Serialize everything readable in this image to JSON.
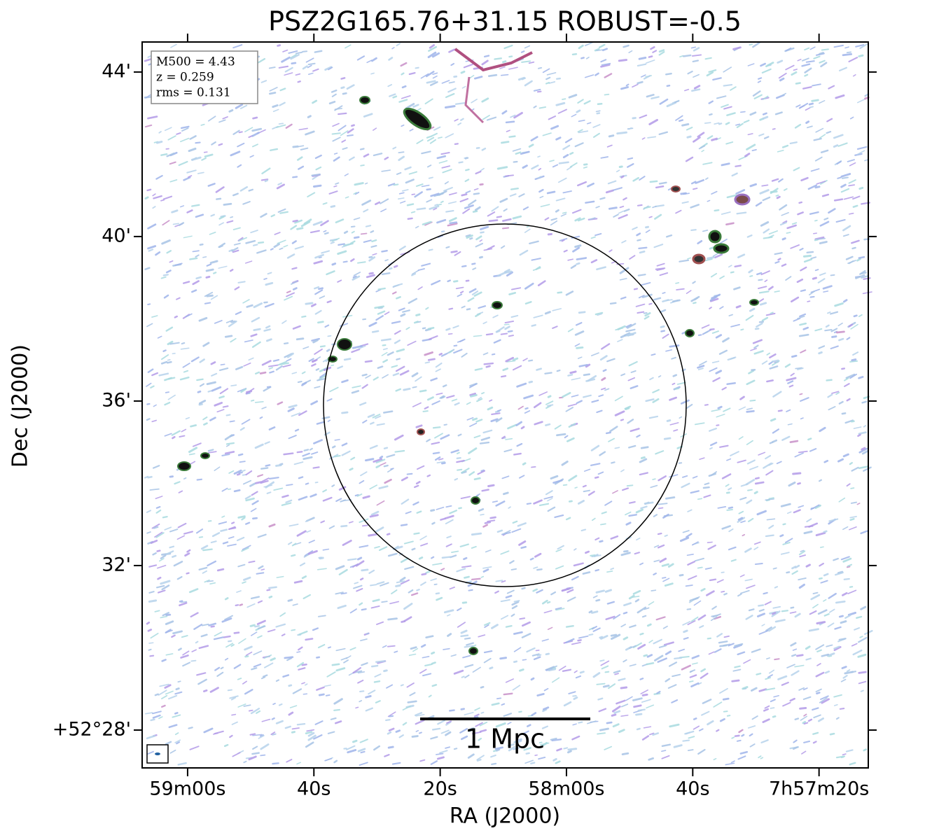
{
  "chart_data": {
    "type": "image",
    "title": "PSZ2G165.76+31.15 ROBUST=-0.5",
    "x_label": "RA (J2000)",
    "y_label": "Dec (J2000)",
    "xlim": [
      127.2,
      12.2
    ],
    "xticks": [
      {
        "value": 120,
        "label": "59m00s"
      },
      {
        "value": 100,
        "label": "40s"
      },
      {
        "value": 80,
        "label": "20s"
      },
      {
        "value": 60,
        "label": "58m00s"
      },
      {
        "value": 40,
        "label": "40s"
      },
      {
        "value": 20,
        "label": "7h57m20s"
      }
    ],
    "ylim": [
      27.08,
      44.73
    ],
    "yticks": [
      {
        "value": 28,
        "label": "+52°28'"
      },
      {
        "value": 32,
        "label": "32'"
      },
      {
        "value": 36,
        "label": "36'"
      },
      {
        "value": 40,
        "label": "40'"
      },
      {
        "value": 44,
        "label": "44'"
      }
    ],
    "annotations": [
      "M500 = 4.43",
      "z = 0.259",
      "rms = 0.131"
    ],
    "scale_bar_label": "1 Mpc"
  }
}
